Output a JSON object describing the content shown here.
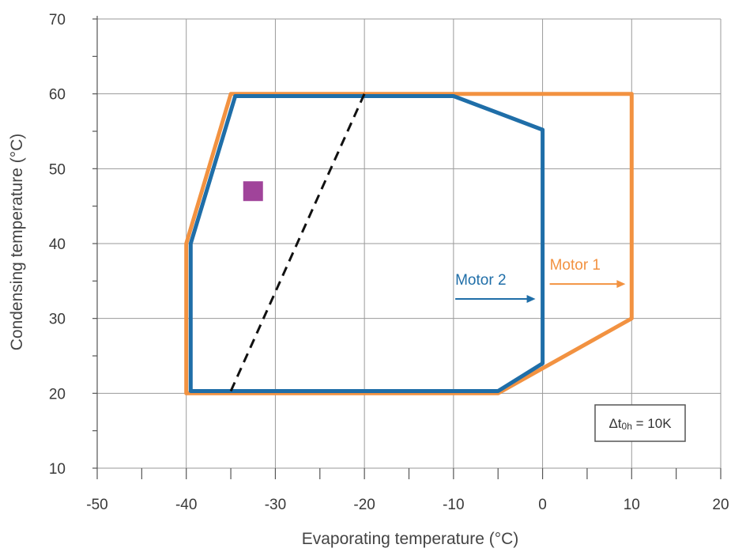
{
  "chart_data": {
    "type": "line",
    "xlabel": "Evaporating temperature (°C)",
    "ylabel": "Condensing temperature (°C)",
    "xlim": [
      -50,
      20
    ],
    "ylim": [
      10,
      70
    ],
    "x_ticks": [
      -50,
      -40,
      -30,
      -20,
      -10,
      0,
      10,
      20
    ],
    "x_tick_labels": [
      "-50",
      "-40",
      "-30",
      "-20",
      "-10",
      "0",
      "10",
      "20"
    ],
    "y_ticks": [
      10,
      20,
      30,
      40,
      50,
      60,
      70
    ],
    "y_tick_labels": [
      "10",
      "20",
      "30",
      "40",
      "50",
      "60",
      "70"
    ],
    "grid": true,
    "series": [
      {
        "name": "Motor 1",
        "color": "#f29241",
        "closed": true,
        "points": [
          [
            -40,
            20
          ],
          [
            -40,
            40
          ],
          [
            -35,
            60
          ],
          [
            10,
            60
          ],
          [
            10,
            30
          ],
          [
            -5,
            20
          ]
        ]
      },
      {
        "name": "Motor 2",
        "color": "#1f6ea8",
        "closed": true,
        "points": [
          [
            -39.5,
            20.3
          ],
          [
            -39.5,
            40
          ],
          [
            -34.5,
            59.7
          ],
          [
            -10,
            59.7
          ],
          [
            0,
            55.2
          ],
          [
            0,
            24
          ],
          [
            -5,
            20.3
          ]
        ]
      }
    ],
    "extra_lines": [
      {
        "style": "dashed",
        "color": "#111111",
        "points": [
          [
            -35,
            20.3
          ],
          [
            -20,
            60
          ]
        ]
      }
    ],
    "markers": [
      {
        "shape": "square",
        "color": "#a0449a",
        "x": -32.5,
        "y": 47
      }
    ],
    "annotations": [
      {
        "text": "Motor 1",
        "color": "#f29241",
        "x": 0.8,
        "y": 36.5,
        "arrow_to": [
          9.3,
          34.6
        ]
      },
      {
        "text": "Motor 2",
        "color": "#1f6ea8",
        "x": -9.8,
        "y": 34.5,
        "arrow_to": [
          -0.8,
          32.6
        ]
      }
    ],
    "note": "Δt0h = 10K",
    "note_parts": {
      "delta": "Δt",
      "sub": "0h",
      "rest": " = 10K"
    }
  }
}
